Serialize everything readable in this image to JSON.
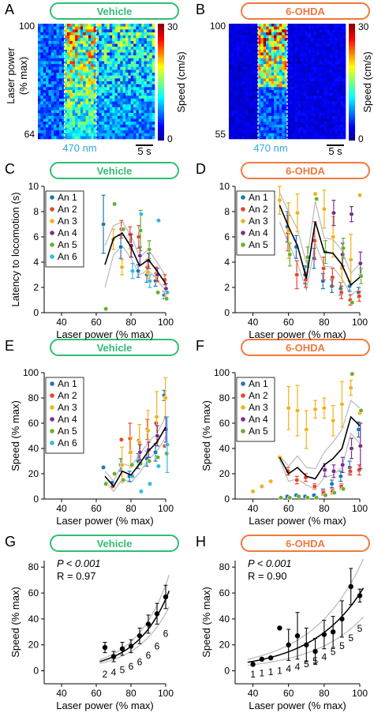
{
  "colors": {
    "vehicle": "#2fbf71",
    "ohda": "#f07a3c",
    "mean": "#000000",
    "sem": "#b8b8b8",
    "animals": [
      "#1f77b4",
      "#e8462a",
      "#f2b21b",
      "#7b2d8f",
      "#66b032",
      "#35b8e6"
    ]
  },
  "panels": {
    "A": {
      "letter": "A",
      "pill": "Vehicle"
    },
    "B": {
      "letter": "B",
      "pill": "6-OHDA"
    },
    "C": {
      "letter": "C",
      "pill": "Vehicle"
    },
    "D": {
      "letter": "D",
      "pill": "6-OHDA"
    },
    "E": {
      "letter": "E",
      "pill": "Vehicle"
    },
    "F": {
      "letter": "F",
      "pill": "6-OHDA"
    },
    "G": {
      "letter": "G",
      "pill": "Vehicle",
      "p": "P < 0.001",
      "r": "R = 0.97"
    },
    "H": {
      "letter": "H",
      "pill": "6-OHDA",
      "p": "P < 0.001",
      "r": "R = 0.90"
    }
  },
  "heatmap_text": {
    "ylabel1": "Laser power",
    "ylabel2": "(% max)",
    "A_top": "100",
    "A_bottom": "64",
    "B_top": "100",
    "B_bottom": "55",
    "stim": "470 nm",
    "scalebar": "5 s",
    "cbar_label": "Speed (cm/s)",
    "cbar_max": "30",
    "cbar_min": "0"
  },
  "chart_data": [
    {
      "panel": "C",
      "type": "scatter",
      "xlabel": "Laser power (% max)",
      "ylabel": "Latency to locomotion (s)",
      "xlim": [
        30,
        100
      ],
      "ylim": [
        0,
        10
      ],
      "xticks": [
        40,
        60,
        80,
        100
      ],
      "yticks": [
        0,
        2,
        4,
        6,
        8,
        10
      ],
      "legend": [
        "An 1",
        "An 2",
        "An 3",
        "An 4",
        "An 5",
        "An 6"
      ],
      "mean": {
        "x": [
          65,
          70,
          75,
          80,
          85,
          90,
          95,
          100
        ],
        "y": [
          3.8,
          5.9,
          6.3,
          5.2,
          3.7,
          4.2,
          3.3,
          2.3
        ]
      },
      "sem_upper": [
        5.3,
        6.9,
        7.2,
        6.1,
        4.4,
        5.0,
        4.0,
        2.9
      ],
      "sem_lower": [
        2.0,
        4.6,
        5.3,
        4.3,
        3.0,
        3.4,
        2.6,
        1.7
      ],
      "series": [
        {
          "name": "An 1",
          "x": [
            65,
            75,
            85,
            90,
            95,
            100
          ],
          "y": [
            7.0,
            5.2,
            3.3,
            3.0,
            2.5,
            1.4
          ],
          "err": [
            2.3,
            0.9,
            0.5,
            0.6,
            0.4,
            0.3
          ]
        },
        {
          "name": "An 2",
          "x": [
            75,
            80,
            85,
            90,
            95,
            100
          ],
          "y": [
            6.6,
            6.2,
            6.0,
            3.6,
            3.1,
            2.6
          ],
          "err": [
            0.7,
            0.6,
            0.9,
            0.6,
            0.5,
            0.4
          ]
        },
        {
          "name": "An 3",
          "x": [
            70,
            75,
            80,
            90,
            95,
            100
          ],
          "y": [
            5.8,
            3.6,
            5.1,
            3.2,
            2.8,
            1.6
          ],
          "err": [
            0.8,
            0.6,
            0.7,
            0.5,
            0.4,
            0.3
          ]
        },
        {
          "name": "An 4",
          "x": [
            80,
            85,
            90,
            95,
            100
          ],
          "y": [
            5.3,
            4.5,
            4.1,
            3.0,
            1.9
          ],
          "err": [
            0.9,
            0.7,
            0.6,
            0.5,
            0.4
          ]
        },
        {
          "name": "An 5",
          "x": [
            65,
            70,
            75,
            85,
            90,
            95,
            100
          ],
          "y": [
            0.3,
            8.6,
            6.6,
            6.5,
            5.0,
            1.6,
            1.1
          ],
          "err": [
            0.0,
            0.0,
            0.0,
            1.6,
            0.7,
            0.0,
            0.0
          ]
        },
        {
          "name": "An 6",
          "x": [
            80,
            85,
            90,
            95,
            100
          ],
          "y": [
            3.3,
            7.8,
            2.5,
            7.3,
            1.6
          ],
          "err": [
            0.6,
            0.0,
            0.5,
            0.0,
            0.0
          ]
        }
      ]
    },
    {
      "panel": "D",
      "type": "scatter",
      "xlabel": "Laser power (% max)",
      "ylabel": "",
      "xlim": [
        30,
        100
      ],
      "ylim": [
        0,
        10
      ],
      "xticks": [
        40,
        60,
        80,
        100
      ],
      "yticks": [
        0,
        2,
        4,
        6,
        8,
        10
      ],
      "legend": [
        "An 1",
        "An 2",
        "An 3",
        "An 4",
        "An 5"
      ],
      "mean": {
        "x": [
          55,
          60,
          65,
          70,
          75,
          80,
          85,
          90,
          95,
          100
        ],
        "y": [
          8.5,
          6.8,
          5.3,
          2.7,
          7.2,
          4.8,
          4.7,
          3.8,
          2.2,
          2.8
        ]
      },
      "sem_upper": [
        9.5,
        8.0,
        6.6,
        3.9,
        8.8,
        5.9,
        5.8,
        4.9,
        3.1,
        3.9
      ],
      "sem_lower": [
        7.2,
        5.5,
        3.9,
        1.8,
        5.5,
        3.7,
        3.6,
        2.7,
        1.4,
        1.9
      ],
      "series": [
        {
          "name": "An 1",
          "x": [
            60,
            65,
            70,
            75,
            80,
            85,
            90,
            95,
            100
          ],
          "y": [
            6.8,
            5.2,
            3.0,
            4.3,
            2.5,
            2.1,
            1.9,
            2.1,
            1.6
          ],
          "err": [
            1.2,
            0.9,
            0.7,
            0.8,
            0.6,
            0.5,
            0.5,
            0.4,
            0.4
          ]
        },
        {
          "name": "An 2",
          "x": [
            60,
            65,
            70,
            75,
            80,
            85,
            90,
            95,
            100
          ],
          "y": [
            6.3,
            3.0,
            2.6,
            5.7,
            3.5,
            2.8,
            1.6,
            1.0,
            1.3
          ],
          "err": [
            1.4,
            1.1,
            0.6,
            1.5,
            0.9,
            0.7,
            0.5,
            0.4,
            0.4
          ]
        },
        {
          "name": "An 3",
          "x": [
            55,
            60,
            65,
            75,
            80,
            85,
            90,
            95,
            100
          ],
          "y": [
            8.9,
            6.5,
            7.9,
            9.4,
            8.2,
            6.0,
            3.5,
            4.2,
            9.3
          ],
          "err": [
            1.1,
            2.2,
            1.5,
            0.0,
            1.5,
            1.6,
            1.1,
            2.0,
            0.0
          ]
        },
        {
          "name": "An 4",
          "x": [
            85,
            90,
            95,
            100
          ],
          "y": [
            7.9,
            4.6,
            7.8,
            3.9
          ],
          "err": [
            1.0,
            0.9,
            0.6,
            0.9
          ]
        },
        {
          "name": "An 5",
          "x": [
            60,
            70,
            75,
            80,
            90,
            95,
            100
          ],
          "y": [
            4.6,
            4.4,
            9.0,
            4.8,
            5.1,
            0.8,
            2.9
          ],
          "err": [
            0.9,
            0.8,
            0.0,
            0.9,
            0.8,
            0.0,
            0.6
          ]
        }
      ]
    },
    {
      "panel": "E",
      "type": "scatter",
      "xlabel": "Laser power (% max)",
      "ylabel": "Speed (% max)",
      "xlim": [
        30,
        100
      ],
      "ylim": [
        0,
        100
      ],
      "xticks": [
        40,
        60,
        80,
        100
      ],
      "yticks": [
        0,
        20,
        40,
        60,
        80,
        100
      ],
      "legend": [
        "An 1",
        "An 2",
        "An 3",
        "An 4",
        "An 5",
        "An 6"
      ],
      "mean": {
        "x": [
          65,
          70,
          75,
          80,
          85,
          90,
          95,
          100
        ],
        "y": [
          18,
          10,
          22,
          19,
          28,
          38,
          45,
          57
        ]
      },
      "sem_upper": [
        22,
        14,
        28,
        26,
        35,
        45,
        52,
        65
      ],
      "sem_lower": [
        14,
        6,
        16,
        13,
        21,
        31,
        38,
        49
      ],
      "series": [
        {
          "name": "An 1",
          "x": [
            65,
            70,
            75,
            80,
            85,
            90,
            95,
            100
          ],
          "y": [
            25,
            13,
            27,
            18,
            30,
            32,
            37,
            82
          ],
          "err": [
            0,
            0,
            5,
            4,
            6,
            6,
            7,
            4
          ]
        },
        {
          "name": "An 2",
          "x": [
            70,
            75,
            80,
            85,
            90,
            95,
            100
          ],
          "y": [
            10,
            47,
            48,
            46,
            55,
            60,
            42
          ],
          "err": [
            0,
            0,
            12,
            0,
            8,
            0,
            0
          ]
        },
        {
          "name": "An 3",
          "x": [
            75,
            80,
            85,
            90,
            95,
            100
          ],
          "y": [
            27,
            37,
            45,
            54,
            65,
            80
          ],
          "err": [
            14,
            12,
            14,
            16,
            20,
            16
          ]
        },
        {
          "name": "An 4",
          "x": [
            85,
            90,
            95,
            100
          ],
          "y": [
            37,
            39,
            50,
            55
          ],
          "err": [
            6,
            6,
            8,
            10
          ]
        },
        {
          "name": "An 5",
          "x": [
            65,
            70,
            75,
            80,
            85,
            90,
            95,
            100
          ],
          "y": [
            12,
            20,
            15,
            27,
            28,
            30,
            33,
            36
          ],
          "err": [
            0,
            0,
            0,
            0,
            0,
            0,
            0,
            0
          ]
        },
        {
          "name": "An 6",
          "x": [
            80,
            85,
            90,
            95,
            100
          ],
          "y": [
            18,
            6,
            12,
            26,
            43
          ],
          "err": [
            0,
            0,
            0,
            0,
            22
          ]
        }
      ]
    },
    {
      "panel": "F",
      "type": "scatter",
      "xlabel": "Laser power (% max)",
      "ylabel": "Speed (% max)",
      "xlim": [
        30,
        100
      ],
      "ylim": [
        0,
        100
      ],
      "xticks": [
        40,
        60,
        80,
        100
      ],
      "yticks": [
        0,
        20,
        40,
        60,
        80,
        100
      ],
      "legend": [
        "An 1",
        "An 2",
        "An 3",
        "An 4",
        "An 5"
      ],
      "mean": {
        "x": [
          55,
          60,
          65,
          70,
          75,
          80,
          85,
          90,
          95,
          100
        ],
        "y": [
          33,
          20,
          25,
          18,
          16,
          27,
          32,
          40,
          65,
          58
        ]
      },
      "sem_upper": [
        34,
        26,
        34,
        25,
        24,
        37,
        45,
        55,
        78,
        72
      ],
      "sem_lower": [
        31,
        14,
        16,
        11,
        8,
        17,
        19,
        25,
        52,
        44
      ],
      "series": [
        {
          "name": "An 1",
          "x": [
            60,
            65,
            70,
            75,
            80,
            85,
            90,
            95,
            100
          ],
          "y": [
            2,
            3,
            2,
            3,
            6,
            12,
            18,
            25,
            55
          ],
          "err": [
            1,
            1,
            1,
            1,
            2,
            3,
            4,
            5,
            6
          ]
        },
        {
          "name": "An 2",
          "x": [
            60,
            65,
            70,
            75,
            80,
            85,
            90,
            95,
            100
          ],
          "y": [
            22,
            15,
            17,
            10,
            5,
            6,
            10,
            22,
            23
          ],
          "err": [
            3,
            3,
            3,
            2,
            2,
            2,
            2,
            3,
            4
          ]
        },
        {
          "name": "An 3",
          "x": [
            40,
            45,
            50,
            55,
            60,
            65,
            70,
            75,
            80,
            85,
            90,
            95,
            100
          ],
          "y": [
            6,
            10,
            14,
            33,
            72,
            70,
            55,
            71,
            72,
            62,
            75,
            88,
            68
          ],
          "err": [
            0,
            0,
            0,
            0,
            17,
            20,
            15,
            7,
            8,
            12,
            18,
            6,
            0
          ]
        },
        {
          "name": "An 4",
          "x": [
            80,
            85,
            90,
            95,
            100
          ],
          "y": [
            23,
            22,
            27,
            40,
            42
          ],
          "err": [
            5,
            5,
            6,
            8,
            18
          ]
        },
        {
          "name": "An 5",
          "x": [
            55,
            60,
            65,
            70,
            75,
            80,
            85,
            90,
            95,
            100
          ],
          "y": [
            1,
            1,
            2,
            1,
            1,
            3,
            5,
            8,
            99,
            70
          ],
          "err": [
            0,
            0,
            0,
            0,
            0,
            0,
            0,
            0,
            0,
            0
          ]
        }
      ]
    },
    {
      "panel": "G",
      "type": "scatter",
      "xlabel": "Laser power (% max)",
      "ylabel": "Speed (% max)",
      "xlim": [
        30,
        100
      ],
      "ylim": [
        -10,
        85
      ],
      "xticks": [
        40,
        60,
        80,
        100
      ],
      "yticks": [
        0,
        20,
        40,
        60,
        80
      ],
      "x": [
        65,
        70,
        75,
        80,
        85,
        90,
        95,
        100
      ],
      "y": [
        18,
        11,
        17,
        19,
        27,
        36,
        44,
        57
      ],
      "err": [
        4,
        4,
        5,
        5,
        6,
        7,
        8,
        9
      ],
      "n": [
        "2",
        "4",
        "5",
        "6",
        "6",
        "6",
        "6",
        "6"
      ],
      "fit": {
        "a": 0.25,
        "b": 0.054
      },
      "fit_ci": 0.2
    },
    {
      "panel": "H",
      "type": "scatter",
      "xlabel": "Laser power (% max)",
      "ylabel": "Speed (% max)",
      "xlim": [
        30,
        100
      ],
      "ylim": [
        -10,
        85
      ],
      "xticks": [
        40,
        60,
        80,
        100
      ],
      "yticks": [
        0,
        20,
        40,
        60,
        80
      ],
      "x": [
        40,
        45,
        50,
        55,
        60,
        65,
        70,
        75,
        80,
        85,
        90,
        95,
        100
      ],
      "y": [
        5,
        9,
        10,
        33,
        20,
        27,
        20,
        15,
        28,
        30,
        40,
        65,
        58
      ],
      "err": [
        0,
        0,
        0,
        0,
        12,
        18,
        13,
        10,
        11,
        12,
        14,
        14,
        5
      ],
      "n": [
        "1",
        "1",
        "1",
        "1",
        "4",
        "4",
        "5",
        "5",
        "4",
        "5",
        "5",
        "5",
        "5"
      ],
      "fit": {
        "a": 1.8,
        "b": 0.035
      },
      "fit_ci": 0.35
    }
  ]
}
